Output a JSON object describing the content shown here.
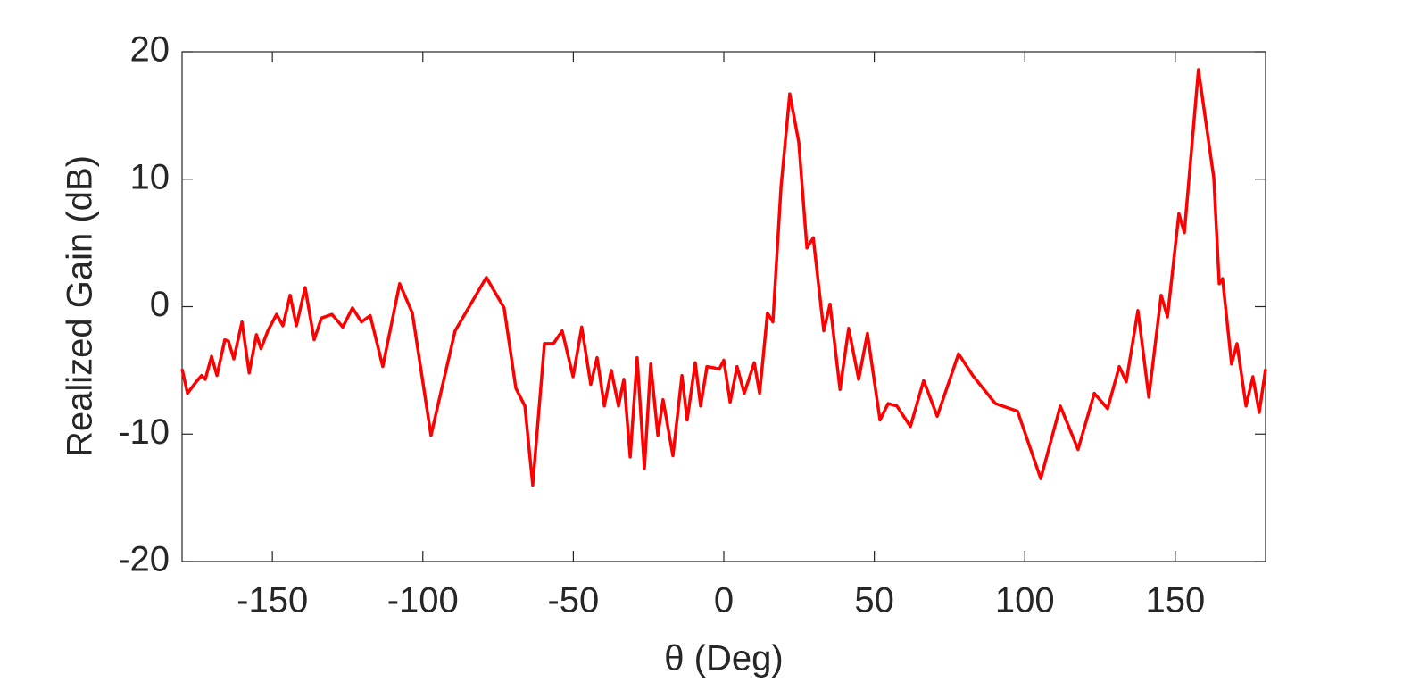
{
  "chart_data": {
    "type": "line",
    "xlabel": "θ (Deg)",
    "ylabel": "Realized Gain (dB)",
    "xlim": [
      -180,
      180
    ],
    "ylim": [
      -20,
      20
    ],
    "xticks": [
      -150,
      -100,
      -50,
      0,
      50,
      100,
      150
    ],
    "yticks": [
      -20,
      -10,
      0,
      10,
      20
    ],
    "x": [
      -180,
      -178.2,
      -175.3,
      -173.5,
      -172.3,
      -170.2,
      -168.4,
      -165.8,
      -164.6,
      -162.8,
      -160.1,
      -157.7,
      -155.3,
      -153.8,
      -151.5,
      -148.6,
      -146.5,
      -144.1,
      -142.0,
      -139.1,
      -136.1,
      -133.7,
      -130.2,
      -126.6,
      -123.4,
      -120.4,
      -117.5,
      -113.3,
      -107.7,
      -103.5,
      -97.3,
      -89.3,
      -78.9,
      -73.0,
      -69.1,
      -66.1,
      -63.5,
      -59.6,
      -56.6,
      -53.7,
      -50.1,
      -47.2,
      -44.2,
      -42.1,
      -39.7,
      -37.4,
      -35.0,
      -33.2,
      -31.1,
      -28.8,
      -26.4,
      -24.3,
      -21.9,
      -20.2,
      -16.9,
      -13.9,
      -12.2,
      -9.5,
      -7.7,
      -5.6,
      -3.3,
      -1.5,
      0,
      2.1,
      4.4,
      6.8,
      10.1,
      11.9,
      14.5,
      16.3,
      19.0,
      21.9,
      24.9,
      27.6,
      29.7,
      33.2,
      35.3,
      38.6,
      41.5,
      44.8,
      47.7,
      51.9,
      54.6,
      57.5,
      62.0,
      66.4,
      70.9,
      78.0,
      82.7,
      90.2,
      97.6,
      105.3,
      111.8,
      117.7,
      123.1,
      127.5,
      131.4,
      133.7,
      137.6,
      141.2,
      145.3,
      147.4,
      151.2,
      153.0,
      157.7,
      162.8,
      164.6,
      165.7,
      168.7,
      170.5,
      173.5,
      175.8,
      177.9,
      180
    ],
    "series": [
      {
        "color": "#ff0000",
        "values": [
          -4.9,
          -6.8,
          -5.9,
          -5.4,
          -5.7,
          -3.9,
          -5.4,
          -2.6,
          -2.7,
          -4.1,
          -1.2,
          -5.2,
          -2.2,
          -3.3,
          -1.9,
          -0.6,
          -1.5,
          0.9,
          -1.5,
          1.5,
          -2.6,
          -0.9,
          -0.6,
          -1.6,
          -0.1,
          -1.2,
          -0.7,
          -4.7,
          1.8,
          -0.5,
          -10.1,
          -1.9,
          2.3,
          -0.1,
          -6.4,
          -7.8,
          -14.0,
          -2.9,
          -2.9,
          -1.9,
          -5.5,
          -1.6,
          -6.1,
          -4.0,
          -7.8,
          -5.0,
          -7.8,
          -5.7,
          -11.8,
          -4.0,
          -12.7,
          -4.5,
          -10.1,
          -7.3,
          -11.7,
          -5.4,
          -8.9,
          -4.4,
          -7.8,
          -4.7,
          -4.8,
          -4.9,
          -4.2,
          -7.5,
          -4.7,
          -6.8,
          -4.4,
          -6.8,
          -0.5,
          -1.2,
          9.4,
          16.7,
          12.9,
          4.6,
          5.4,
          -1.9,
          0.2,
          -6.5,
          -1.7,
          -5.7,
          -2.1,
          -8.9,
          -7.6,
          -7.8,
          -9.4,
          -5.8,
          -8.6,
          -3.7,
          -5.4,
          -7.6,
          -8.2,
          -13.5,
          -7.8,
          -11.2,
          -6.8,
          -8.0,
          -4.7,
          -5.9,
          -0.3,
          -7.1,
          0.9,
          -0.8,
          7.3,
          5.8,
          18.6,
          10.1,
          1.8,
          2.2,
          -4.5,
          -2.9,
          -7.8,
          -5.5,
          -8.3,
          -4.9
        ]
      }
    ]
  }
}
